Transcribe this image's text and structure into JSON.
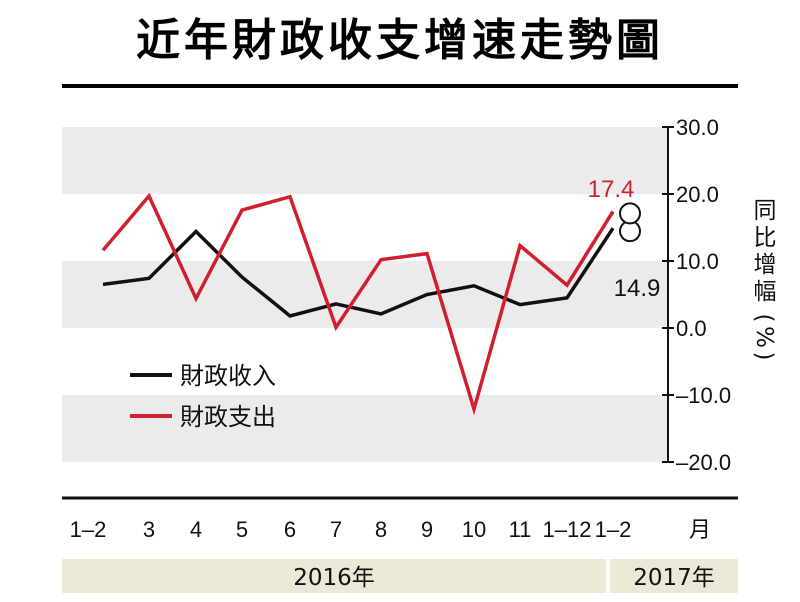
{
  "title": "近年財政收支增速走勢圖",
  "chart_data": {
    "type": "line",
    "categories": [
      "1–2",
      "3",
      "4",
      "5",
      "6",
      "7",
      "8",
      "9",
      "10",
      "11",
      "1–12",
      "1–2"
    ],
    "x_unit_label": "月",
    "year_groups": [
      {
        "label": "2016年",
        "span": 11
      },
      {
        "label": "2017年",
        "span": 1
      }
    ],
    "ylabel": "同比增幅(%)",
    "ylim": [
      -20,
      30
    ],
    "yticks": [
      "30.0",
      "20.0",
      "10.0",
      "0.0",
      "–10.0",
      "–20.0"
    ],
    "series": [
      {
        "name": "財政收入",
        "color": "#111111",
        "values": [
          6.5,
          7.4,
          14.4,
          7.6,
          1.8,
          3.6,
          2.1,
          5.0,
          6.3,
          3.5,
          4.5,
          14.9
        ]
      },
      {
        "name": "財政支出",
        "color": "#d11f2e",
        "values": [
          11.6,
          19.7,
          4.4,
          17.6,
          19.6,
          0.1,
          10.2,
          11.1,
          -12.1,
          12.3,
          6.4,
          17.4
        ]
      }
    ],
    "annotations": [
      {
        "text": "17.4",
        "series": 1,
        "index": 11,
        "color": "#d11f2e"
      },
      {
        "text": "14.9",
        "series": 0,
        "index": 11,
        "color": "#111111"
      }
    ]
  }
}
